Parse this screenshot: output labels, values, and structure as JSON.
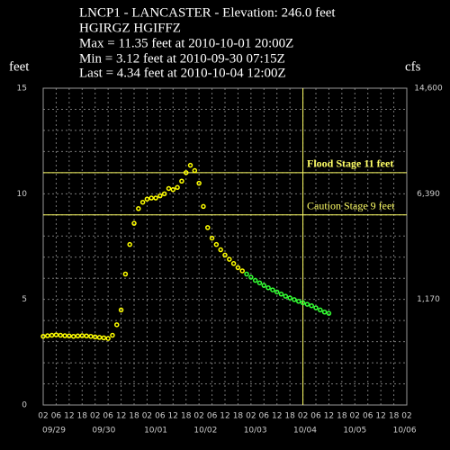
{
  "chart_data": {
    "type": "scatter",
    "header": [
      "LNCP1 - LANCASTER - Elevation: 246.0 feet",
      "HGIRGZ    HGIFFZ",
      "Max = 11.35 feet at 2010-10-01 20:00Z",
      "Min = 3.12 feet at 2010-09-30 07:15Z",
      "Last = 4.34 feet at 2010-10-04 12:00Z"
    ],
    "ylabel": "feet",
    "y2label": "cfs",
    "xlim": [
      0,
      168
    ],
    "ylim": [
      0,
      15
    ],
    "yticks": [
      0,
      5,
      10,
      15
    ],
    "ygrid": [
      1,
      2,
      3,
      4,
      5,
      6,
      7,
      8,
      9,
      10,
      11,
      12,
      13,
      14
    ],
    "y2ticks": [
      {
        "value": 1170,
        "label": "1,170"
      },
      {
        "value": 6390,
        "label": "6,390"
      },
      {
        "value": 14600,
        "label": "14,600"
      }
    ],
    "y2tick_stages": [
      5,
      10,
      15
    ],
    "xticks": [
      {
        "value": 0,
        "label": "02"
      },
      {
        "value": 6,
        "label": "06"
      },
      {
        "value": 12,
        "label": "12"
      },
      {
        "value": 18,
        "label": "18"
      },
      {
        "value": 24,
        "label": "02"
      },
      {
        "value": 30,
        "label": "06"
      },
      {
        "value": 36,
        "label": "12"
      },
      {
        "value": 42,
        "label": "18"
      },
      {
        "value": 48,
        "label": "02"
      },
      {
        "value": 54,
        "label": "06"
      },
      {
        "value": 60,
        "label": "12"
      },
      {
        "value": 66,
        "label": "18"
      },
      {
        "value": 72,
        "label": "02"
      },
      {
        "value": 78,
        "label": "06"
      },
      {
        "value": 84,
        "label": "12"
      },
      {
        "value": 90,
        "label": "18"
      },
      {
        "value": 96,
        "label": "02"
      },
      {
        "value": 102,
        "label": "06"
      },
      {
        "value": 108,
        "label": "12"
      },
      {
        "value": 114,
        "label": "18"
      },
      {
        "value": 120,
        "label": "02"
      },
      {
        "value": 126,
        "label": "06"
      },
      {
        "value": 132,
        "label": "12"
      },
      {
        "value": 138,
        "label": "18"
      },
      {
        "value": 144,
        "label": "02"
      },
      {
        "value": 150,
        "label": "06"
      },
      {
        "value": 156,
        "label": "12"
      },
      {
        "value": 162,
        "label": "18"
      },
      {
        "value": 168,
        "label": "02"
      }
    ],
    "date_ticks": [
      {
        "value": 5,
        "label": "09/29"
      },
      {
        "value": 28,
        "label": "09/30"
      },
      {
        "value": 52,
        "label": "10/01"
      },
      {
        "value": 75,
        "label": "10/02"
      },
      {
        "value": 98,
        "label": "10/03"
      },
      {
        "value": 121,
        "label": "10/04"
      },
      {
        "value": 144,
        "label": "10/05"
      },
      {
        "value": 167,
        "label": "10/06"
      }
    ],
    "thresholds": [
      {
        "value": 11,
        "label": "Flood Stage  11 feet",
        "color": "#ffff66",
        "bold": true
      },
      {
        "value": 9,
        "label": "Caution Stage  9 feet",
        "color": "#ffff66",
        "bold": false
      }
    ],
    "now_line": 120,
    "series": [
      {
        "color": "#ffff00",
        "x": [
          0,
          2,
          4,
          6,
          8,
          10,
          12,
          14,
          16,
          18,
          20,
          22,
          24,
          26,
          28,
          30,
          32,
          34,
          36,
          38,
          40,
          42,
          44,
          46,
          48,
          50,
          52,
          54,
          56,
          58,
          60,
          62,
          64,
          66,
          68,
          70,
          72,
          74,
          76,
          78,
          80,
          82,
          84,
          86,
          88,
          90,
          92
        ],
        "values": [
          3.25,
          3.28,
          3.3,
          3.32,
          3.3,
          3.28,
          3.27,
          3.25,
          3.27,
          3.28,
          3.27,
          3.25,
          3.22,
          3.2,
          3.18,
          3.15,
          3.3,
          3.8,
          4.5,
          6.2,
          7.6,
          8.6,
          9.3,
          9.6,
          9.75,
          9.8,
          9.8,
          9.9,
          10.0,
          10.25,
          10.2,
          10.3,
          10.6,
          11.0,
          11.35,
          11.1,
          10.5,
          9.4,
          8.4,
          7.9,
          7.6,
          7.35,
          7.1,
          6.9,
          6.7,
          6.5,
          6.35
        ]
      },
      {
        "color": "#33ff33",
        "x": [
          94,
          96,
          98,
          100,
          102,
          104,
          106,
          108,
          110,
          112,
          114,
          116,
          118,
          120,
          122,
          124,
          126,
          128,
          130,
          132
        ],
        "values": [
          6.2,
          6.05,
          5.9,
          5.78,
          5.66,
          5.55,
          5.45,
          5.35,
          5.25,
          5.15,
          5.07,
          4.99,
          4.91,
          4.84,
          4.77,
          4.7,
          4.6,
          4.5,
          4.4,
          4.34
        ]
      }
    ]
  }
}
